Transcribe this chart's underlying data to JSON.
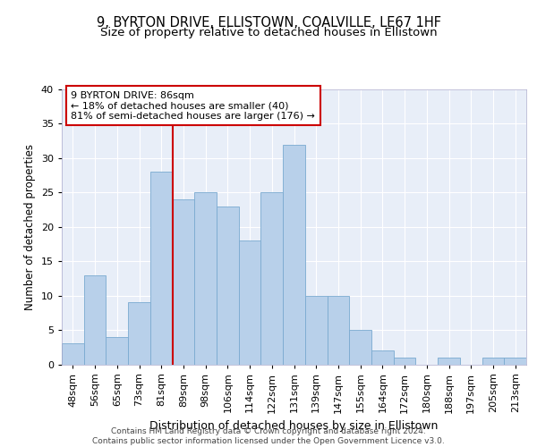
{
  "title1": "9, BYRTON DRIVE, ELLISTOWN, COALVILLE, LE67 1HF",
  "title2": "Size of property relative to detached houses in Ellistown",
  "xlabel": "Distribution of detached houses by size in Ellistown",
  "ylabel": "Number of detached properties",
  "categories": [
    "48sqm",
    "56sqm",
    "65sqm",
    "73sqm",
    "81sqm",
    "89sqm",
    "98sqm",
    "106sqm",
    "114sqm",
    "122sqm",
    "131sqm",
    "139sqm",
    "147sqm",
    "155sqm",
    "164sqm",
    "172sqm",
    "180sqm",
    "188sqm",
    "197sqm",
    "205sqm",
    "213sqm"
  ],
  "values": [
    3,
    13,
    4,
    9,
    28,
    24,
    25,
    23,
    18,
    25,
    32,
    10,
    10,
    5,
    2,
    1,
    0,
    1,
    0,
    1,
    1
  ],
  "bar_color": "#b8d0ea",
  "bar_edge_color": "#7aaad0",
  "vline_x": 4.5,
  "vline_color": "#cc0000",
  "annotation_text": "9 BYRTON DRIVE: 86sqm\n← 18% of detached houses are smaller (40)\n81% of semi-detached houses are larger (176) →",
  "annotation_box_color": "#ffffff",
  "annotation_box_edge_color": "#cc0000",
  "ylim": [
    0,
    40
  ],
  "yticks": [
    0,
    5,
    10,
    15,
    20,
    25,
    30,
    35,
    40
  ],
  "footnote": "Contains HM Land Registry data © Crown copyright and database right 2024.\nContains public sector information licensed under the Open Government Licence v3.0.",
  "bg_color": "#e8eef8",
  "grid_color": "#ffffff",
  "title1_fontsize": 10.5,
  "title2_fontsize": 9.5,
  "xlabel_fontsize": 9,
  "ylabel_fontsize": 8.5,
  "tick_fontsize": 8,
  "annot_fontsize": 8,
  "footnote_fontsize": 6.5
}
